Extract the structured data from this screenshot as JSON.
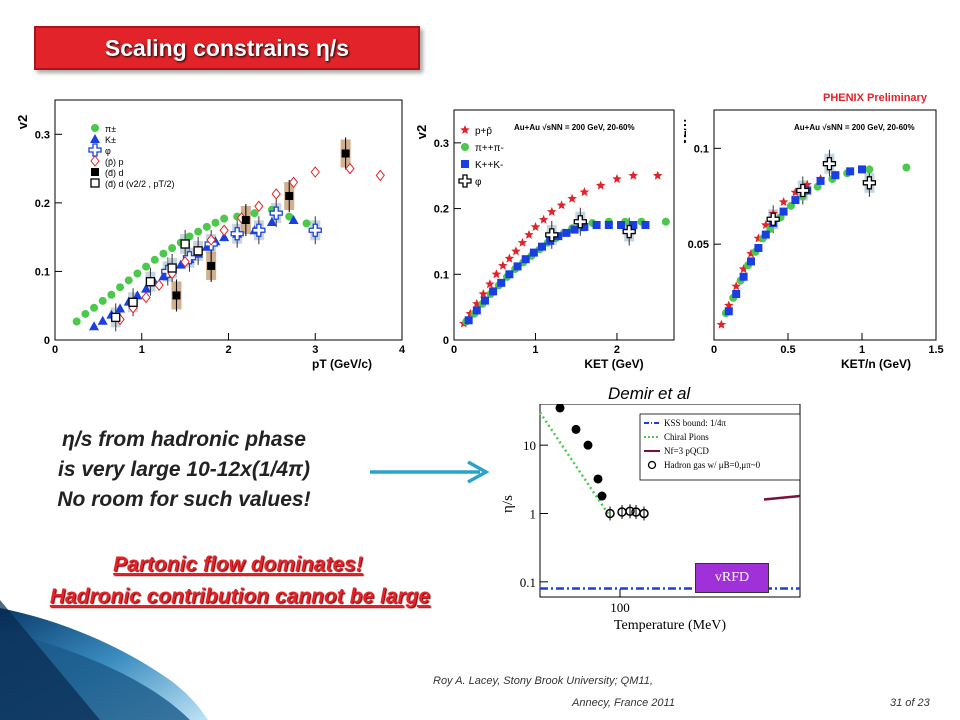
{
  "slide": {
    "title": "Scaling constrains η/s",
    "phenix_label": "PHENIX Preliminary",
    "demir_label": "Demir et al",
    "text_lines": [
      "η/s from hadronic phase",
      "is very large 10-12x(1/4π)",
      "No room for such values!"
    ],
    "red_lines": [
      "Partonic flow dominates!",
      "Hadronic contribution cannot be large"
    ],
    "footer_line1": "Roy A. Lacey, Stony Brook University; QM11,",
    "footer_line2": "Annecy, France 2011",
    "page": "31 of 23",
    "vrfd_label": "vRFD",
    "colors": {
      "title_bg": "#e2242a",
      "red": "#e2242a",
      "green": "#4cc84c",
      "blue": "#1a3fe0",
      "arrow": "#2aa3c9",
      "purple": "#a030d8"
    }
  },
  "chart_data": [
    {
      "type": "scatter",
      "ylabel": "v2",
      "xlabel": "pT (GeV/c)",
      "xlim": [
        0,
        4
      ],
      "ylim": [
        0,
        0.35
      ],
      "xticks": [
        "0",
        "1",
        "2",
        "3",
        "4"
      ],
      "yticks": [
        "0",
        "0.1",
        "0.2",
        "0.3"
      ],
      "legend": [
        "π±",
        "K±",
        "φ",
        "(p̄) p",
        "(d̄) d",
        "(d̄) d (v2/2 , pT/2)"
      ],
      "series": [
        {
          "name": "π±",
          "marker": "circle",
          "color": "#4cc84c",
          "x": [
            0.25,
            0.35,
            0.45,
            0.55,
            0.65,
            0.75,
            0.85,
            0.95,
            1.05,
            1.15,
            1.25,
            1.35,
            1.45,
            1.55,
            1.65,
            1.75,
            1.85,
            1.95,
            2.1,
            2.3,
            2.5,
            2.7,
            2.9
          ],
          "y": [
            0.027,
            0.038,
            0.047,
            0.057,
            0.066,
            0.077,
            0.087,
            0.097,
            0.107,
            0.117,
            0.126,
            0.134,
            0.142,
            0.151,
            0.158,
            0.165,
            0.171,
            0.177,
            0.18,
            0.185,
            0.19,
            0.18,
            0.17
          ]
        },
        {
          "name": "K±",
          "marker": "triangle",
          "color": "#1a3fe0",
          "x": [
            0.45,
            0.55,
            0.65,
            0.75,
            0.85,
            0.95,
            1.05,
            1.15,
            1.25,
            1.35,
            1.45,
            1.55,
            1.65,
            1.75,
            1.85,
            1.95,
            2.1,
            2.3,
            2.5,
            2.75
          ],
          "y": [
            0.02,
            0.028,
            0.037,
            0.046,
            0.056,
            0.065,
            0.075,
            0.084,
            0.093,
            0.103,
            0.11,
            0.118,
            0.126,
            0.136,
            0.144,
            0.15,
            0.155,
            0.16,
            0.172,
            0.175
          ]
        },
        {
          "name": "φ",
          "marker": "cross",
          "color": "#1a3fe0",
          "x": [
            1.3,
            1.55,
            1.8,
            2.1,
            2.35,
            2.55,
            3.0
          ],
          "y": [
            0.1,
            0.12,
            0.14,
            0.155,
            0.16,
            0.185,
            0.16
          ]
        },
        {
          "name": "(p̄) p",
          "marker": "diamond",
          "color": "#e2242a",
          "x": [
            0.75,
            0.9,
            1.05,
            1.2,
            1.35,
            1.5,
            1.65,
            1.8,
            1.95,
            2.15,
            2.35,
            2.55,
            2.75,
            3.0,
            3.4,
            3.75
          ],
          "y": [
            0.03,
            0.047,
            0.062,
            0.08,
            0.097,
            0.114,
            0.13,
            0.146,
            0.16,
            0.178,
            0.195,
            0.213,
            0.23,
            0.245,
            0.25,
            0.24
          ]
        },
        {
          "name": "(d̄) d",
          "marker": "square",
          "color": "#000000",
          "x": [
            1.4,
            1.8,
            2.2,
            2.7,
            3.35
          ],
          "y": [
            0.065,
            0.108,
            0.175,
            0.21,
            0.272
          ]
        },
        {
          "name": "(d̄) d (v2/2 , pT/2)",
          "marker": "open-square",
          "color": "#000000",
          "x": [
            0.7,
            0.9,
            1.1,
            1.35,
            1.5,
            1.65
          ],
          "y": [
            0.033,
            0.055,
            0.085,
            0.105,
            0.14,
            0.13
          ]
        }
      ]
    },
    {
      "type": "scatter",
      "ylabel": "v2",
      "xlabel": "KET (GeV)",
      "xlim": [
        0,
        2.7
      ],
      "ylim": [
        0,
        0.35
      ],
      "xticks": [
        "0",
        "1",
        "2"
      ],
      "yticks": [
        "0",
        "0.1",
        "0.2",
        "0.3"
      ],
      "annotation": "Au+Au √sNN = 200 GeV, 20-60%",
      "legend": [
        "p+p̄",
        "π++π-",
        "K++K-",
        "φ"
      ],
      "series": [
        {
          "name": "p+p̄",
          "marker": "star",
          "color": "#e2242a",
          "x": [
            0.12,
            0.2,
            0.28,
            0.36,
            0.44,
            0.52,
            0.6,
            0.68,
            0.76,
            0.84,
            0.92,
            1.0,
            1.1,
            1.2,
            1.32,
            1.45,
            1.6,
            1.8,
            2.0,
            2.2,
            2.5
          ],
          "y": [
            0.025,
            0.04,
            0.055,
            0.07,
            0.085,
            0.1,
            0.113,
            0.124,
            0.135,
            0.148,
            0.16,
            0.172,
            0.183,
            0.195,
            0.205,
            0.215,
            0.225,
            0.235,
            0.245,
            0.25,
            0.25
          ]
        },
        {
          "name": "π++π-",
          "marker": "circle",
          "color": "#4cc84c",
          "x": [
            0.15,
            0.25,
            0.35,
            0.45,
            0.55,
            0.65,
            0.75,
            0.85,
            0.95,
            1.05,
            1.15,
            1.25,
            1.35,
            1.45,
            1.55,
            1.7,
            1.9,
            2.1,
            2.3,
            2.6
          ],
          "y": [
            0.028,
            0.04,
            0.055,
            0.07,
            0.083,
            0.096,
            0.108,
            0.118,
            0.128,
            0.138,
            0.148,
            0.155,
            0.163,
            0.17,
            0.175,
            0.178,
            0.18,
            0.18,
            0.18,
            0.18
          ]
        },
        {
          "name": "K++K-",
          "marker": "square",
          "color": "#1a3fe0",
          "x": [
            0.18,
            0.28,
            0.38,
            0.48,
            0.58,
            0.68,
            0.78,
            0.88,
            0.98,
            1.08,
            1.18,
            1.28,
            1.38,
            1.48,
            1.6,
            1.75,
            1.9,
            2.05,
            2.2,
            2.35
          ],
          "y": [
            0.03,
            0.045,
            0.06,
            0.074,
            0.087,
            0.1,
            0.112,
            0.123,
            0.133,
            0.142,
            0.151,
            0.158,
            0.163,
            0.168,
            0.172,
            0.175,
            0.175,
            0.175,
            0.175,
            0.175
          ]
        },
        {
          "name": "φ",
          "marker": "cross",
          "color": "#000000",
          "x": [
            1.2,
            1.55,
            2.15
          ],
          "y": [
            0.16,
            0.18,
            0.165
          ]
        }
      ]
    },
    {
      "type": "scatter",
      "ylabel": "v2/n",
      "xlabel": "KET/n (GeV)",
      "xlim": [
        0,
        1.5
      ],
      "ylim": [
        0,
        0.12
      ],
      "xticks": [
        "0",
        "0.5",
        "1",
        "1.5"
      ],
      "yticks": [
        "0.05",
        "0.1"
      ],
      "annotation": "Au+Au √sNN = 200 GeV, 20-60%",
      "series": [
        {
          "name": "p+p̄",
          "marker": "star",
          "color": "#e2242a",
          "x": [
            0.05,
            0.1,
            0.15,
            0.2,
            0.25,
            0.3,
            0.35,
            0.4,
            0.47,
            0.55,
            0.63,
            0.72,
            0.82
          ],
          "y": [
            0.008,
            0.018,
            0.028,
            0.037,
            0.045,
            0.053,
            0.06,
            0.066,
            0.072,
            0.077,
            0.081,
            0.084,
            0.086
          ]
        },
        {
          "name": "π++π-",
          "marker": "circle",
          "color": "#4cc84c",
          "x": [
            0.08,
            0.13,
            0.18,
            0.23,
            0.28,
            0.33,
            0.38,
            0.45,
            0.52,
            0.6,
            0.7,
            0.8,
            0.9,
            1.05,
            1.3
          ],
          "y": [
            0.014,
            0.022,
            0.031,
            0.039,
            0.046,
            0.053,
            0.058,
            0.064,
            0.07,
            0.075,
            0.08,
            0.084,
            0.087,
            0.089,
            0.09
          ]
        },
        {
          "name": "K++K-",
          "marker": "square",
          "color": "#1a3fe0",
          "x": [
            0.1,
            0.15,
            0.2,
            0.25,
            0.3,
            0.35,
            0.4,
            0.47,
            0.55,
            0.63,
            0.72,
            0.82,
            0.92,
            1.0
          ],
          "y": [
            0.015,
            0.024,
            0.033,
            0.041,
            0.048,
            0.055,
            0.061,
            0.067,
            0.073,
            0.078,
            0.083,
            0.086,
            0.088,
            0.089
          ]
        },
        {
          "name": "φ",
          "marker": "cross",
          "color": "#000000",
          "x": [
            0.4,
            0.6,
            0.78,
            1.05
          ],
          "y": [
            0.063,
            0.078,
            0.092,
            0.082
          ]
        }
      ]
    },
    {
      "type": "scatter",
      "ylabel": "η/s",
      "xlabel": "Temperature (MeV)",
      "yscale": "log",
      "ylim": [
        0.06,
        40
      ],
      "xticks": [
        "100"
      ],
      "yticks": [
        "0.1",
        "1",
        "10"
      ],
      "legend": [
        "KSS bound: 1/4π",
        "Chiral Pions",
        "Nf=3 pQCD",
        "Hadron gas w/ μB=0,μπ~0"
      ],
      "series": [
        {
          "name": "Hadron gas w/ μB=0,μπ~0",
          "marker": "circle",
          "color": "#000000",
          "x": [
            70,
            78,
            84,
            89,
            91,
            95,
            101,
            105,
            108,
            112
          ],
          "y": [
            35,
            17,
            10,
            3.2,
            1.8,
            1.0,
            1.05,
            1.08,
            1.05,
            1.0
          ]
        },
        {
          "name": "KSS bound: 1/4π",
          "style": "dash-dot",
          "color": "#1a3fe0",
          "y_constant": 0.08
        },
        {
          "name": "Chiral Pions",
          "style": "dotted",
          "color": "#4cc84c"
        },
        {
          "name": "Nf=3 pQCD",
          "style": "solid",
          "color": "#7a1040"
        }
      ]
    }
  ]
}
